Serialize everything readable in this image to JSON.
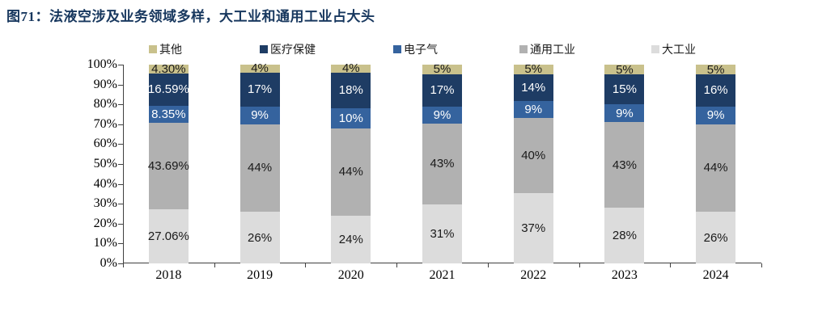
{
  "title": {
    "prefix": "图71：",
    "text": "法液空涉及业务领域多样，大工业和通用工业占大头"
  },
  "colors": {
    "title": "#17375E",
    "axis": "#404040",
    "background": "#FFFFFF"
  },
  "chart_data": {
    "type": "bar",
    "stacked": true,
    "percent": true,
    "title": "图71：法液空涉及业务领域多样，大工业和通用工业占大头",
    "xlabel": "",
    "ylabel": "",
    "ylim": [
      0,
      100
    ],
    "grid": false,
    "legend_position": "top",
    "categories": [
      "2018",
      "2019",
      "2020",
      "2021",
      "2022",
      "2023",
      "2024"
    ],
    "y_ticks": [
      "100%",
      "90%",
      "80%",
      "70%",
      "60%",
      "50%",
      "40%",
      "30%",
      "20%",
      "10%",
      "0%"
    ],
    "series": [
      {
        "name": "大工业",
        "color": "#DCDCDC",
        "text_color": "#1a1a1a",
        "values": [
          27.06,
          26,
          24,
          31,
          37,
          28,
          26
        ],
        "labels": [
          "27.06%",
          "26%",
          "24%",
          "31%",
          "37%",
          "28%",
          "26%"
        ]
      },
      {
        "name": "通用工业",
        "color": "#B1B1B1",
        "text_color": "#1a1a1a",
        "values": [
          43.69,
          44,
          44,
          43,
          40,
          43,
          44
        ],
        "labels": [
          "43.69%",
          "44%",
          "44%",
          "43%",
          "40%",
          "43%",
          "44%"
        ]
      },
      {
        "name": "电子气",
        "color": "#35639E",
        "text_color": "#ffffff",
        "values": [
          8.35,
          9,
          10,
          9,
          9,
          9,
          9
        ],
        "labels": [
          "8.35%",
          "9%",
          "10%",
          "9%",
          "9%",
          "9%",
          "9%"
        ]
      },
      {
        "name": "医疗保健",
        "color": "#1E3C64",
        "text_color": "#ffffff",
        "values": [
          16.59,
          17,
          18,
          17,
          14,
          15,
          16
        ],
        "labels": [
          "16.59%",
          "17%",
          "18%",
          "17%",
          "14%",
          "15%",
          "16%"
        ]
      },
      {
        "name": "其他",
        "color": "#C9C18C",
        "text_color": "#1a1a1a",
        "values": [
          4.3,
          4,
          4,
          5,
          5,
          5,
          5
        ],
        "labels": [
          "4.30%",
          "4%",
          "4%",
          "5%",
          "5%",
          "5%",
          "5%"
        ]
      }
    ],
    "legend_order": [
      "其他",
      "医疗保健",
      "电子气",
      "通用工业",
      "大工业"
    ]
  }
}
